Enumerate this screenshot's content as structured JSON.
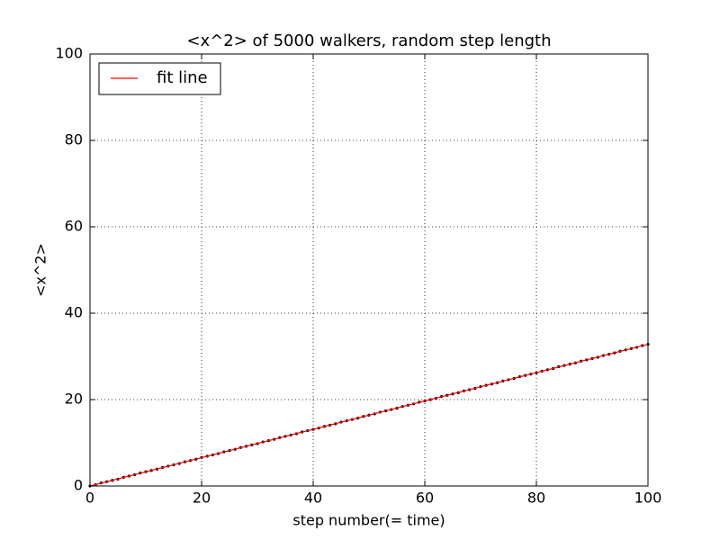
{
  "chart_data": {
    "type": "scatter",
    "title": "<x^2> of 5000 walkers, random step length",
    "xlabel": "step number(= time)",
    "ylabel": "<x^2>",
    "xlim": [
      0,
      100
    ],
    "ylim": [
      0,
      100
    ],
    "xticks": [
      0,
      20,
      40,
      60,
      80,
      100
    ],
    "yticks": [
      0,
      20,
      40,
      60,
      80,
      100
    ],
    "grid": true,
    "legend": "upper left",
    "series": [
      {
        "type": "scatter",
        "color": "#000000",
        "x": [
          0,
          1,
          2,
          3,
          4,
          5,
          6,
          7,
          8,
          9,
          10,
          11,
          12,
          13,
          14,
          15,
          16,
          17,
          18,
          19,
          20,
          21,
          22,
          23,
          24,
          25,
          26,
          27,
          28,
          29,
          30,
          31,
          32,
          33,
          34,
          35,
          36,
          37,
          38,
          39,
          40,
          41,
          42,
          43,
          44,
          45,
          46,
          47,
          48,
          49,
          50,
          51,
          52,
          53,
          54,
          55,
          56,
          57,
          58,
          59,
          60,
          61,
          62,
          63,
          64,
          65,
          66,
          67,
          68,
          69,
          70,
          71,
          72,
          73,
          74,
          75,
          76,
          77,
          78,
          79,
          80,
          81,
          82,
          83,
          84,
          85,
          86,
          87,
          88,
          89,
          90,
          91,
          92,
          93,
          94,
          95,
          96,
          97,
          98,
          99,
          100
        ],
        "values": [
          0,
          0.3,
          0.7,
          1.0,
          1.3,
          1.6,
          2.0,
          2.3,
          2.6,
          3.0,
          3.3,
          3.6,
          3.9,
          4.3,
          4.6,
          4.9,
          5.2,
          5.6,
          5.9,
          6.2,
          6.6,
          6.9,
          7.2,
          7.5,
          7.9,
          8.2,
          8.5,
          8.9,
          9.2,
          9.5,
          9.8,
          10.2,
          10.5,
          10.8,
          11.2,
          11.5,
          11.8,
          12.1,
          12.5,
          12.8,
          13.1,
          13.4,
          13.8,
          14.1,
          14.4,
          14.8,
          15.1,
          15.4,
          15.7,
          16.1,
          16.4,
          16.7,
          17.1,
          17.4,
          17.7,
          18.0,
          18.4,
          18.7,
          19.0,
          19.4,
          19.7,
          20.0,
          20.3,
          20.7,
          21.0,
          21.3,
          21.6,
          22.0,
          22.3,
          22.6,
          23.0,
          23.3,
          23.6,
          23.9,
          24.3,
          24.6,
          24.9,
          25.3,
          25.6,
          25.9,
          26.2,
          26.6,
          26.9,
          27.2,
          27.6,
          27.9,
          28.2,
          28.5,
          28.9,
          29.2,
          29.5,
          29.8,
          30.2,
          30.5,
          30.8,
          31.2,
          31.5,
          31.8,
          32.1,
          32.5,
          32.8
        ]
      },
      {
        "type": "line",
        "name": "fit line",
        "color": "#ff0000",
        "x": [
          0,
          100
        ],
        "values": [
          0,
          32.8
        ]
      }
    ]
  }
}
